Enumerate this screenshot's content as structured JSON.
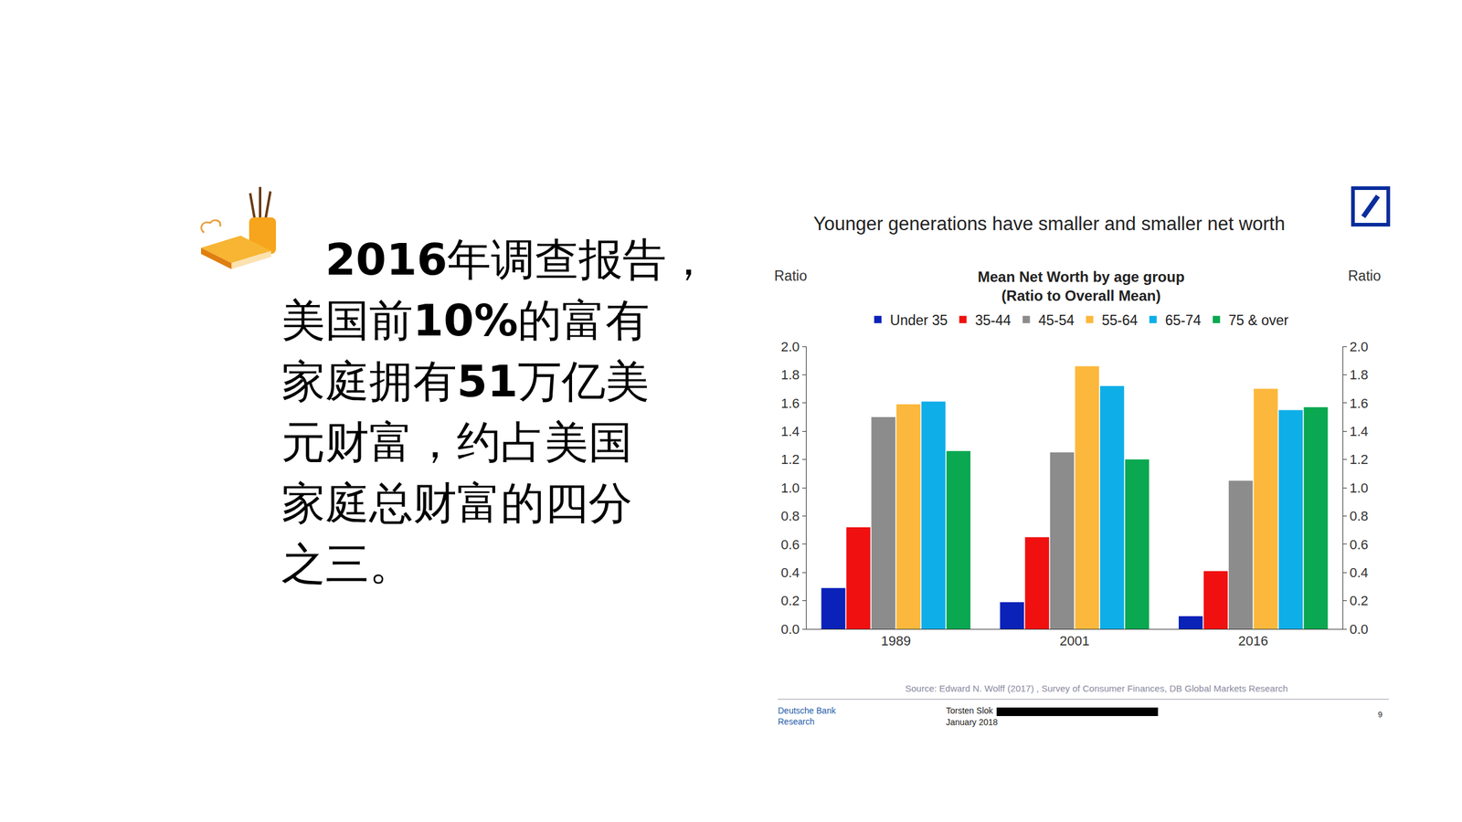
{
  "slide_text": [
    "2016年调查报告，",
    "美国前10%的富有",
    "家庭拥有51万亿美",
    "元财富，约占美国",
    "家庭总财富的四分",
    "之三。"
  ],
  "chart_data": {
    "type": "bar",
    "title": "Younger generations have smaller and smaller net worth",
    "subtitle": [
      "Mean Net Worth by age group",
      "(Ratio to Overall Mean)"
    ],
    "ylabel": "Ratio",
    "y2label": "Ratio",
    "categories": [
      "1989",
      "2001",
      "2016"
    ],
    "series": [
      {
        "name": "Under 35",
        "color": "#0a22b8",
        "values": [
          0.29,
          0.19,
          0.09
        ]
      },
      {
        "name": "35-44",
        "color": "#f01010",
        "values": [
          0.72,
          0.65,
          0.41
        ]
      },
      {
        "name": "45-54",
        "color": "#8c8c8c",
        "values": [
          1.5,
          1.25,
          1.05
        ]
      },
      {
        "name": "55-64",
        "color": "#fcb83c",
        "values": [
          1.59,
          1.86,
          1.7
        ]
      },
      {
        "name": "65-74",
        "color": "#0eaee8",
        "values": [
          1.61,
          1.72,
          1.55
        ]
      },
      {
        "name": "75 & over",
        "color": "#0aa850",
        "values": [
          1.26,
          1.2,
          1.57
        ]
      }
    ],
    "ylim": [
      0,
      2
    ],
    "yticks": [
      {
        "value": 0,
        "label": "0.0"
      },
      {
        "value": 0.2,
        "label": "0.2"
      },
      {
        "value": 0.4,
        "label": "0.4"
      },
      {
        "value": 0.6,
        "label": "0.6"
      },
      {
        "value": 0.8,
        "label": "0.8"
      },
      {
        "value": 1,
        "label": "1.0"
      },
      {
        "value": 1.2,
        "label": "1.2"
      },
      {
        "value": 1.4,
        "label": "1.4"
      },
      {
        "value": 1.6,
        "label": "1.6"
      },
      {
        "value": 1.8,
        "label": "1.8"
      },
      {
        "value": 2,
        "label": "2.0"
      }
    ],
    "y2lim": [
      0,
      2
    ],
    "y2ticks": [
      {
        "value": 0,
        "label": "0.0"
      },
      {
        "value": 0.2,
        "label": "0.2"
      },
      {
        "value": 0.4,
        "label": "0.4"
      },
      {
        "value": 0.6,
        "label": "0.6"
      },
      {
        "value": 0.8,
        "label": "0.8"
      },
      {
        "value": 1,
        "label": "1.0"
      },
      {
        "value": 1.2,
        "label": "1.2"
      },
      {
        "value": 1.4,
        "label": "1.4"
      },
      {
        "value": 1.6,
        "label": "1.6"
      },
      {
        "value": 1.8,
        "label": "1.8"
      },
      {
        "value": 2,
        "label": "2.0"
      }
    ],
    "legend": "top",
    "grid": false,
    "source": "Source: Edward N. Wolff (2017) , Survey of Consumer Finances, DB Global Markets Research"
  },
  "footer": {
    "publisher": [
      "Deutsche Bank",
      "Research"
    ],
    "author": "Torsten Slok",
    "date": "January 2018",
    "page": "9"
  }
}
